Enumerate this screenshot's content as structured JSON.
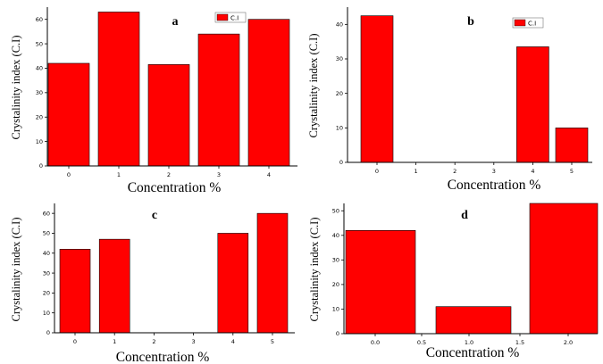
{
  "chart_data": [
    {
      "type": "bar",
      "panel_label": "a",
      "categories": [
        "0",
        "1",
        "2",
        "3",
        "4"
      ],
      "values": [
        42,
        63,
        41.5,
        54,
        60
      ],
      "ylabel": "Crystalinity index (C.I)",
      "xlabel": "Concentration %",
      "ylim": [
        0,
        65
      ],
      "yticks": [
        "0",
        "10",
        "20",
        "30",
        "40",
        "50",
        "60"
      ],
      "legend": [
        "C.I"
      ],
      "legend_position": "top-right",
      "color": "#ff0000"
    },
    {
      "type": "bar",
      "panel_label": "b",
      "categories": [
        "0",
        "1",
        "2",
        "3",
        "4",
        "5"
      ],
      "values": [
        42.5,
        0,
        0,
        0,
        33.5,
        10
      ],
      "ylabel": "Crystalinity index (C.I)",
      "xlabel": "Concentration %",
      "ylim": [
        0,
        45
      ],
      "yticks": [
        "0",
        "10",
        "20",
        "30",
        "40"
      ],
      "legend": [
        "C.I"
      ],
      "legend_position": "top-right",
      "color": "#ff0000"
    },
    {
      "type": "bar",
      "panel_label": "c",
      "categories": [
        "0",
        "1",
        "2",
        "3",
        "4",
        "5"
      ],
      "values": [
        42,
        47,
        0,
        0,
        50,
        60
      ],
      "ylabel": "Crystalinity index (C.I)",
      "xlabel": "Concentration %",
      "ylim": [
        0,
        65
      ],
      "yticks": [
        "0",
        "10",
        "20",
        "30",
        "40",
        "50",
        "60"
      ],
      "legend": [],
      "color": "#ff0000"
    },
    {
      "type": "bar",
      "panel_label": "d",
      "categories": [
        "0.0",
        "1.0",
        "2.0"
      ],
      "x_tick_labels": [
        "0.0",
        "0.5",
        "1.0",
        "1.5",
        "2.0"
      ],
      "values": [
        42,
        11,
        53
      ],
      "ylabel": "Crystalinity index (C.I)",
      "xlabel": "Concentration %",
      "ylim": [
        0,
        53
      ],
      "yticks": [
        "0",
        "10",
        "20",
        "30",
        "40",
        "50"
      ],
      "legend": [],
      "color": "#ff0000"
    }
  ]
}
